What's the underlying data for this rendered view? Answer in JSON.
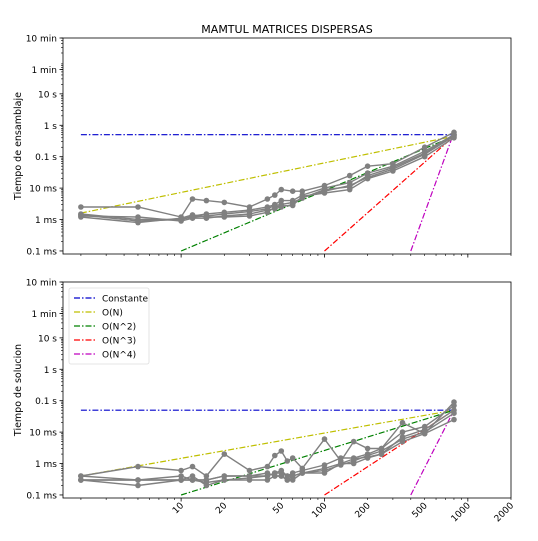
{
  "chart_data": [
    {
      "type": "line",
      "title": "MAMTUL MATRICES DISPERSAS",
      "ylabel": "Tiempo de ensamblaje",
      "xlabel": "",
      "xscale": "log",
      "yscale": "log",
      "xlim": [
        1.5,
        2000
      ],
      "ylim_seconds": [
        8e-05,
        600
      ],
      "x_tick_labels": [],
      "y_ticks": [
        {
          "value": 0.0001,
          "label": "0.1 ms"
        },
        {
          "value": 0.001,
          "label": "1 ms"
        },
        {
          "value": 0.01,
          "label": "10 ms"
        },
        {
          "value": 0.1,
          "label": "0.1 s"
        },
        {
          "value": 1,
          "label": "1 s"
        },
        {
          "value": 10,
          "label": "10 s"
        },
        {
          "value": 60,
          "label": "1 min"
        },
        {
          "value": 600,
          "label": "10 min"
        }
      ],
      "reference_lines": [
        {
          "name": "Constante",
          "color": "#0000cc",
          "x": [
            2,
            800
          ],
          "y": [
            0.5,
            0.5
          ]
        },
        {
          "name": "O(N)",
          "color": "#bfbf00",
          "x": [
            2,
            800
          ],
          "y": [
            0.0016,
            0.45
          ]
        },
        {
          "name": "O(N^2)",
          "color": "#008000",
          "x": [
            10,
            800
          ],
          "y": [
            0.0001,
            0.45
          ]
        },
        {
          "name": "O(N^3)",
          "color": "#ff0000",
          "x": [
            100,
            800
          ],
          "y": [
            0.0001,
            0.45
          ]
        },
        {
          "name": "O(N^4)",
          "color": "#bf00bf",
          "x": [
            400,
            800
          ],
          "y": [
            0.0001,
            0.6
          ]
        }
      ],
      "series": [
        {
          "x": [
            2,
            5,
            10,
            12,
            15,
            20,
            30,
            40,
            45,
            50,
            60,
            70,
            100,
            150,
            200,
            300,
            500,
            800
          ],
          "y": [
            0.0025,
            0.0025,
            0.0012,
            0.0045,
            0.004,
            0.0035,
            0.0025,
            0.0045,
            0.006,
            0.009,
            0.008,
            0.008,
            0.012,
            0.025,
            0.05,
            0.06,
            0.2,
            0.6
          ]
        },
        {
          "x": [
            2,
            5,
            10,
            12,
            15,
            20,
            30,
            40,
            45,
            50,
            60,
            70,
            100,
            150,
            200,
            300,
            500,
            800
          ],
          "y": [
            0.0015,
            0.001,
            0.001,
            0.0013,
            0.0015,
            0.0017,
            0.002,
            0.0025,
            0.003,
            0.004,
            0.004,
            0.006,
            0.01,
            0.015,
            0.03,
            0.05,
            0.15,
            0.5
          ]
        },
        {
          "x": [
            2,
            5,
            10,
            12,
            15,
            20,
            30,
            40,
            45,
            50,
            60,
            70,
            100,
            150,
            200,
            300,
            500,
            800
          ],
          "y": [
            0.0013,
            0.0012,
            0.0009,
            0.0011,
            0.0011,
            0.0013,
            0.0015,
            0.002,
            0.0022,
            0.0025,
            0.003,
            0.005,
            0.008,
            0.012,
            0.022,
            0.04,
            0.12,
            0.45
          ]
        },
        {
          "x": [
            2,
            5,
            10,
            12,
            15,
            20,
            30,
            40,
            45,
            50,
            60,
            70,
            100,
            150,
            200,
            300,
            500,
            800
          ],
          "y": [
            0.0012,
            0.0008,
            0.0011,
            0.0014,
            0.0012,
            0.0012,
            0.0013,
            0.0017,
            0.0025,
            0.0027,
            0.0028,
            0.0055,
            0.007,
            0.009,
            0.02,
            0.035,
            0.1,
            0.4
          ]
        },
        {
          "x": [
            2,
            5,
            10,
            12,
            15,
            20,
            30,
            40,
            45,
            50,
            60,
            70,
            100,
            150,
            200,
            300,
            500,
            800
          ],
          "y": [
            0.0014,
            0.0009,
            0.001,
            0.0012,
            0.0013,
            0.0015,
            0.0018,
            0.0022,
            0.0028,
            0.003,
            0.0035,
            0.0048,
            0.009,
            0.011,
            0.025,
            0.045,
            0.13,
            0.5
          ]
        }
      ]
    },
    {
      "type": "line",
      "title": "",
      "ylabel": "Tiempo de solucion",
      "xlabel": "",
      "xscale": "log",
      "yscale": "log",
      "xlim": [
        1.5,
        2000
      ],
      "ylim_seconds": [
        8e-05,
        600
      ],
      "x_tick_labels": [
        "10",
        "20",
        "50",
        "100",
        "200",
        "500",
        "1000",
        "2000"
      ],
      "x_tick_values": [
        10,
        20,
        50,
        100,
        200,
        500,
        1000,
        2000
      ],
      "y_ticks": [
        {
          "value": 0.0001,
          "label": "0.1 ms"
        },
        {
          "value": 0.001,
          "label": "1 ms"
        },
        {
          "value": 0.01,
          "label": "10 ms"
        },
        {
          "value": 0.1,
          "label": "0.1 s"
        },
        {
          "value": 1,
          "label": "1 s"
        },
        {
          "value": 10,
          "label": "10 s"
        },
        {
          "value": 60,
          "label": "1 min"
        },
        {
          "value": 600,
          "label": "10 min"
        }
      ],
      "legend": {
        "position": "top-left",
        "entries": [
          "Constante",
          "O(N)",
          "O(N^2)",
          "O(N^3)",
          "O(N^4)"
        ]
      },
      "reference_lines": [
        {
          "name": "Constante",
          "color": "#0000cc",
          "x": [
            2,
            800
          ],
          "y": [
            0.05,
            0.05
          ]
        },
        {
          "name": "O(N)",
          "color": "#bfbf00",
          "x": [
            2,
            800
          ],
          "y": [
            0.0004,
            0.05
          ]
        },
        {
          "name": "O(N^2)",
          "color": "#008000",
          "x": [
            10,
            800
          ],
          "y": [
            0.0001,
            0.05
          ]
        },
        {
          "name": "O(N^3)",
          "color": "#ff0000",
          "x": [
            100,
            800
          ],
          "y": [
            0.0001,
            0.05
          ]
        },
        {
          "name": "O(N^4)",
          "color": "#bf00bf",
          "x": [
            400,
            800
          ],
          "y": [
            0.0001,
            0.05
          ]
        }
      ],
      "series": [
        {
          "x": [
            2,
            5,
            10,
            12,
            15,
            20,
            30,
            40,
            45,
            50,
            55,
            60,
            70,
            100,
            130,
            160,
            200,
            250,
            350,
            500,
            800
          ],
          "y": [
            0.0004,
            0.0008,
            0.0006,
            0.0008,
            0.0004,
            0.002,
            0.0006,
            0.0008,
            0.0018,
            0.0025,
            0.0012,
            0.0015,
            0.0007,
            0.006,
            0.0012,
            0.005,
            0.003,
            0.003,
            0.02,
            0.009,
            0.09
          ]
        },
        {
          "x": [
            2,
            5,
            10,
            12,
            15,
            20,
            30,
            40,
            45,
            50,
            55,
            60,
            70,
            100,
            130,
            160,
            200,
            250,
            350,
            500,
            800
          ],
          "y": [
            0.0003,
            0.0002,
            0.0003,
            0.0003,
            0.00025,
            0.0003,
            0.00035,
            0.0004,
            0.0005,
            0.0006,
            0.0004,
            0.0005,
            0.0006,
            0.0009,
            0.0015,
            0.0015,
            0.002,
            0.003,
            0.01,
            0.015,
            0.07
          ]
        },
        {
          "x": [
            2,
            5,
            10,
            12,
            15,
            20,
            30,
            40,
            45,
            50,
            55,
            60,
            70,
            100,
            130,
            160,
            200,
            250,
            350,
            500,
            800
          ],
          "y": [
            0.0003,
            0.0003,
            0.0004,
            0.0003,
            0.0003,
            0.0004,
            0.0004,
            0.0005,
            0.0004,
            0.0004,
            0.0003,
            0.0004,
            0.0005,
            0.0005,
            0.001,
            0.001,
            0.0015,
            0.002,
            0.007,
            0.012,
            0.05
          ]
        },
        {
          "x": [
            2,
            5,
            10,
            12,
            15,
            20,
            30,
            40,
            45,
            50,
            55,
            60,
            70,
            100,
            130,
            160,
            200,
            250,
            350,
            500,
            800
          ],
          "y": [
            0.0004,
            0.0003,
            0.0003,
            0.0004,
            0.0002,
            0.0003,
            0.0003,
            0.0003,
            0.0004,
            0.0004,
            0.0003,
            0.0003,
            0.0005,
            0.0006,
            0.0009,
            0.0012,
            0.0018,
            0.0025,
            0.006,
            0.01,
            0.04
          ]
        },
        {
          "x": [
            2,
            5,
            10,
            12,
            15,
            20,
            30,
            40,
            45,
            50,
            55,
            60,
            70,
            100,
            130,
            160,
            200,
            250,
            350,
            500,
            800
          ],
          "y": [
            0.0003,
            0.0003,
            0.0003,
            0.0003,
            0.0003,
            0.0004,
            0.0004,
            0.0004,
            0.0005,
            0.0005,
            0.0004,
            0.0004,
            0.0005,
            0.0007,
            0.001,
            0.0014,
            0.0016,
            0.002,
            0.005,
            0.009,
            0.025
          ]
        }
      ]
    }
  ]
}
